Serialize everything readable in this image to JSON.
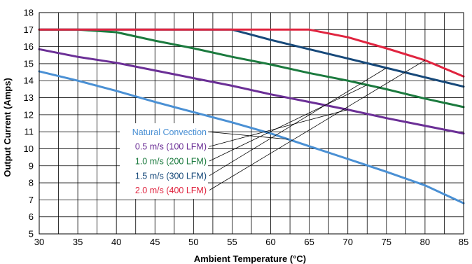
{
  "chart_data": {
    "type": "line",
    "xlabel": "Ambient Temperature (°C)",
    "ylabel": "Output Current (Amps)",
    "xlim": [
      30,
      85
    ],
    "ylim": [
      5,
      18
    ],
    "xticks": [
      30,
      35,
      40,
      45,
      50,
      55,
      60,
      65,
      70,
      75,
      80,
      85
    ],
    "yticks": [
      5,
      6,
      7,
      8,
      9,
      10,
      11,
      12,
      13,
      14,
      15,
      16,
      17,
      18
    ],
    "grid": true,
    "legend_placement": "inside-center-left",
    "series": [
      {
        "name": "Natural Convection",
        "color": "#4a90d4",
        "points": [
          [
            30,
            14.55
          ],
          [
            35,
            14.0
          ],
          [
            40,
            13.4
          ],
          [
            45,
            12.75
          ],
          [
            50,
            12.15
          ],
          [
            55,
            11.55
          ],
          [
            60,
            10.9
          ],
          [
            65,
            10.15
          ],
          [
            70,
            9.4
          ],
          [
            75,
            8.65
          ],
          [
            80,
            7.85
          ],
          [
            85,
            6.8
          ]
        ]
      },
      {
        "name": "0.5 m/s (100 LFM)",
        "color": "#6b2f96",
        "points": [
          [
            30,
            15.85
          ],
          [
            35,
            15.4
          ],
          [
            40,
            15.05
          ],
          [
            45,
            14.6
          ],
          [
            50,
            14.15
          ],
          [
            55,
            13.7
          ],
          [
            60,
            13.2
          ],
          [
            65,
            12.75
          ],
          [
            70,
            12.3
          ],
          [
            75,
            11.8
          ],
          [
            80,
            11.35
          ],
          [
            85,
            10.9
          ]
        ]
      },
      {
        "name": "1.0 m/s (200 LFM)",
        "color": "#1b7a3e",
        "points": [
          [
            30,
            17.0
          ],
          [
            35,
            17.0
          ],
          [
            40,
            16.85
          ],
          [
            45,
            16.35
          ],
          [
            50,
            15.9
          ],
          [
            55,
            15.4
          ],
          [
            60,
            14.95
          ],
          [
            65,
            14.45
          ],
          [
            70,
            14.0
          ],
          [
            75,
            13.5
          ],
          [
            80,
            12.95
          ],
          [
            85,
            12.45
          ]
        ]
      },
      {
        "name": "1.5 m/s (300 LFM)",
        "color": "#17497a",
        "points": [
          [
            30,
            17.0
          ],
          [
            35,
            17.0
          ],
          [
            40,
            17.0
          ],
          [
            45,
            17.0
          ],
          [
            50,
            17.0
          ],
          [
            55,
            17.0
          ],
          [
            60,
            16.4
          ],
          [
            65,
            15.85
          ],
          [
            70,
            15.3
          ],
          [
            75,
            14.75
          ],
          [
            80,
            14.2
          ],
          [
            85,
            13.65
          ]
        ]
      },
      {
        "name": "2.0 m/s (400 LFM)",
        "color": "#e0243f",
        "points": [
          [
            30,
            17.0
          ],
          [
            35,
            17.0
          ],
          [
            40,
            17.0
          ],
          [
            45,
            17.0
          ],
          [
            50,
            17.0
          ],
          [
            55,
            17.0
          ],
          [
            60,
            17.0
          ],
          [
            65,
            17.0
          ],
          [
            70,
            16.55
          ],
          [
            75,
            15.9
          ],
          [
            80,
            15.2
          ],
          [
            85,
            14.25
          ]
        ]
      }
    ]
  }
}
